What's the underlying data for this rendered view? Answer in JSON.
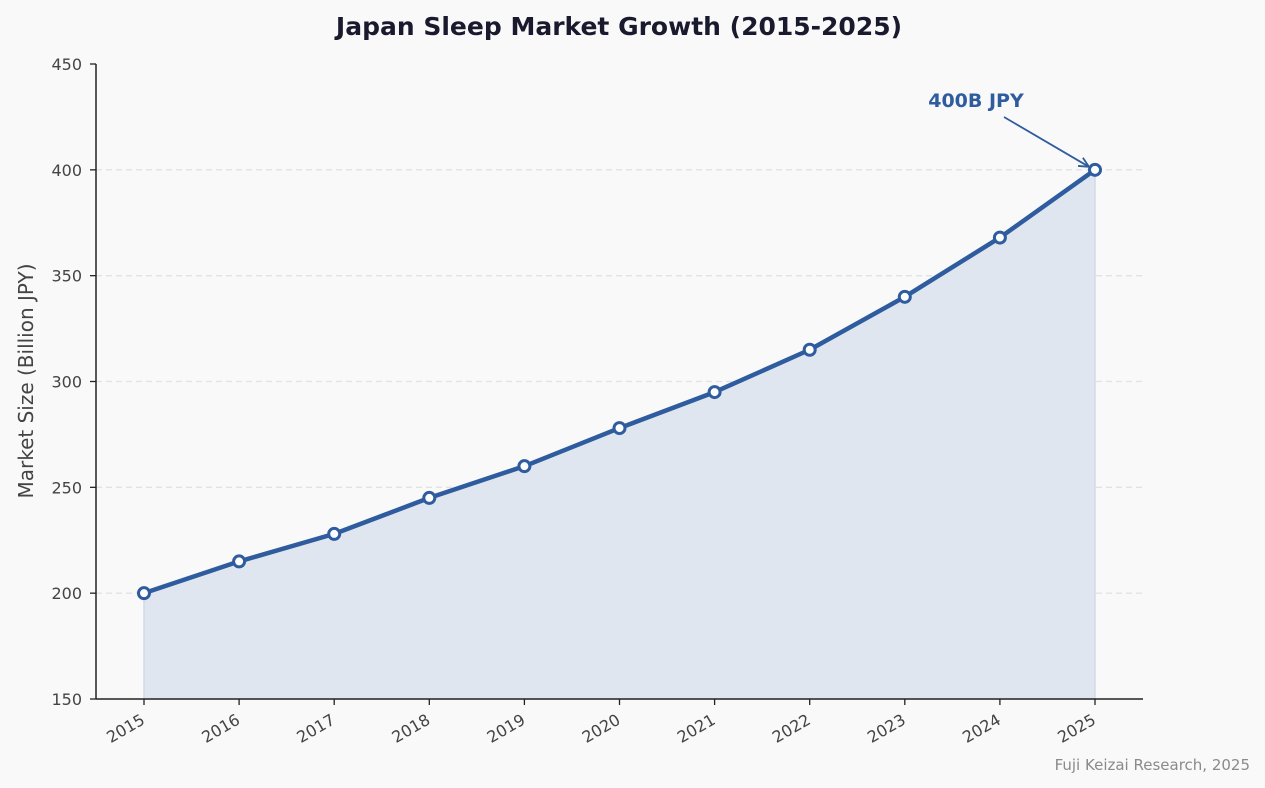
{
  "chart_data": {
    "type": "area",
    "title": "Japan Sleep Market Growth (2015-2025)",
    "xlabel": "",
    "ylabel": "Market Size (Billion JPY)",
    "x": [
      "2015",
      "2016",
      "2017",
      "2018",
      "2019",
      "2020",
      "2021",
      "2022",
      "2023",
      "2024",
      "2025"
    ],
    "values": [
      200,
      215,
      228,
      245,
      260,
      278,
      295,
      315,
      340,
      368,
      400
    ],
    "ylim": [
      150,
      450
    ],
    "yticks": [
      150,
      200,
      250,
      300,
      350,
      400,
      450
    ],
    "grid": "horizontal dashed",
    "markers": "hollow circles",
    "annotation": {
      "text": "400B JPY",
      "x": "2025",
      "y": 400
    },
    "source_note": "Fuji Keizai Research, 2025",
    "colors": {
      "line": "#2e5c9e",
      "fill": "#e0e6ef",
      "grid": "#e2e2e2",
      "axis": "#222222",
      "background": "#f9f9f9"
    }
  }
}
